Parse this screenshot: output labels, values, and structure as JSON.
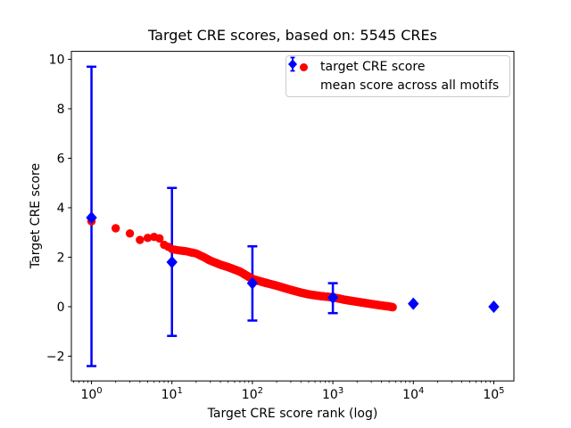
{
  "page": {
    "background": "#ffffff"
  },
  "chart_data": {
    "type": "scatter",
    "title": "Target CRE scores, based on: 5545 CREs",
    "xlabel": "Target CRE score rank (log)",
    "ylabel": "Target CRE score",
    "x_scale": "log",
    "xlim_log10": [
      -0.25,
      5.25
    ],
    "ylim": [
      -3.0,
      10.32
    ],
    "grid": false,
    "axis_color": "#000000",
    "x_ticks": [
      {
        "value": 1,
        "label_base": "10",
        "label_exp": "0"
      },
      {
        "value": 10,
        "label_base": "10",
        "label_exp": "1"
      },
      {
        "value": 100,
        "label_base": "10",
        "label_exp": "2"
      },
      {
        "value": 1000,
        "label_base": "10",
        "label_exp": "3"
      },
      {
        "value": 10000,
        "label_base": "10",
        "label_exp": "4"
      },
      {
        "value": 100000,
        "label_base": "10",
        "label_exp": "5"
      }
    ],
    "y_ticks": [
      {
        "value": 10,
        "label": "10"
      },
      {
        "value": 8,
        "label": "8"
      },
      {
        "value": 6,
        "label": "6"
      },
      {
        "value": 4,
        "label": "4"
      },
      {
        "value": 2,
        "label": "2"
      },
      {
        "value": 0,
        "label": "0"
      },
      {
        "value": -2,
        "label": "−2"
      }
    ],
    "legend": {
      "position": "upper right",
      "border_color": "#cccccc"
    },
    "series": [
      {
        "name": "target CRE score",
        "type": "scatter",
        "marker": "circle",
        "color": "#ff0000",
        "marker_radius_px": 4.7,
        "n_points": 5545,
        "curve_anchors_rank_score": [
          [
            1,
            3.45
          ],
          [
            2,
            3.17
          ],
          [
            3,
            2.96
          ],
          [
            4,
            2.7
          ],
          [
            5,
            2.78
          ],
          [
            6,
            2.82
          ],
          [
            7,
            2.76
          ],
          [
            8,
            2.5
          ],
          [
            9,
            2.42
          ],
          [
            10,
            2.33
          ],
          [
            12,
            2.28
          ],
          [
            15,
            2.24
          ],
          [
            20,
            2.15
          ],
          [
            25,
            2.0
          ],
          [
            30,
            1.86
          ],
          [
            40,
            1.7
          ],
          [
            50,
            1.6
          ],
          [
            70,
            1.42
          ],
          [
            100,
            1.12
          ],
          [
            140,
            0.98
          ],
          [
            200,
            0.85
          ],
          [
            300,
            0.68
          ],
          [
            400,
            0.57
          ],
          [
            500,
            0.5
          ],
          [
            700,
            0.43
          ],
          [
            1000,
            0.38
          ],
          [
            1400,
            0.28
          ],
          [
            2000,
            0.2
          ],
          [
            3000,
            0.11
          ],
          [
            4000,
            0.05
          ],
          [
            5000,
            0.01
          ],
          [
            5545,
            -0.02
          ]
        ]
      },
      {
        "name": "mean score across all motifs",
        "type": "errorbar",
        "marker": "diamond",
        "color": "#0000ff",
        "points": [
          {
            "rank": 1,
            "mean": 3.6,
            "upper": 9.7,
            "lower": -2.4
          },
          {
            "rank": 10,
            "mean": 1.8,
            "upper": 4.8,
            "lower": -1.18
          },
          {
            "rank": 100,
            "mean": 0.95,
            "upper": 2.44,
            "lower": -0.56
          },
          {
            "rank": 1000,
            "mean": 0.37,
            "upper": 0.95,
            "lower": -0.26
          },
          {
            "rank": 10000,
            "mean": 0.12,
            "upper": null,
            "lower": null
          },
          {
            "rank": 100000,
            "mean": 0.0,
            "upper": null,
            "lower": null
          }
        ]
      }
    ]
  }
}
